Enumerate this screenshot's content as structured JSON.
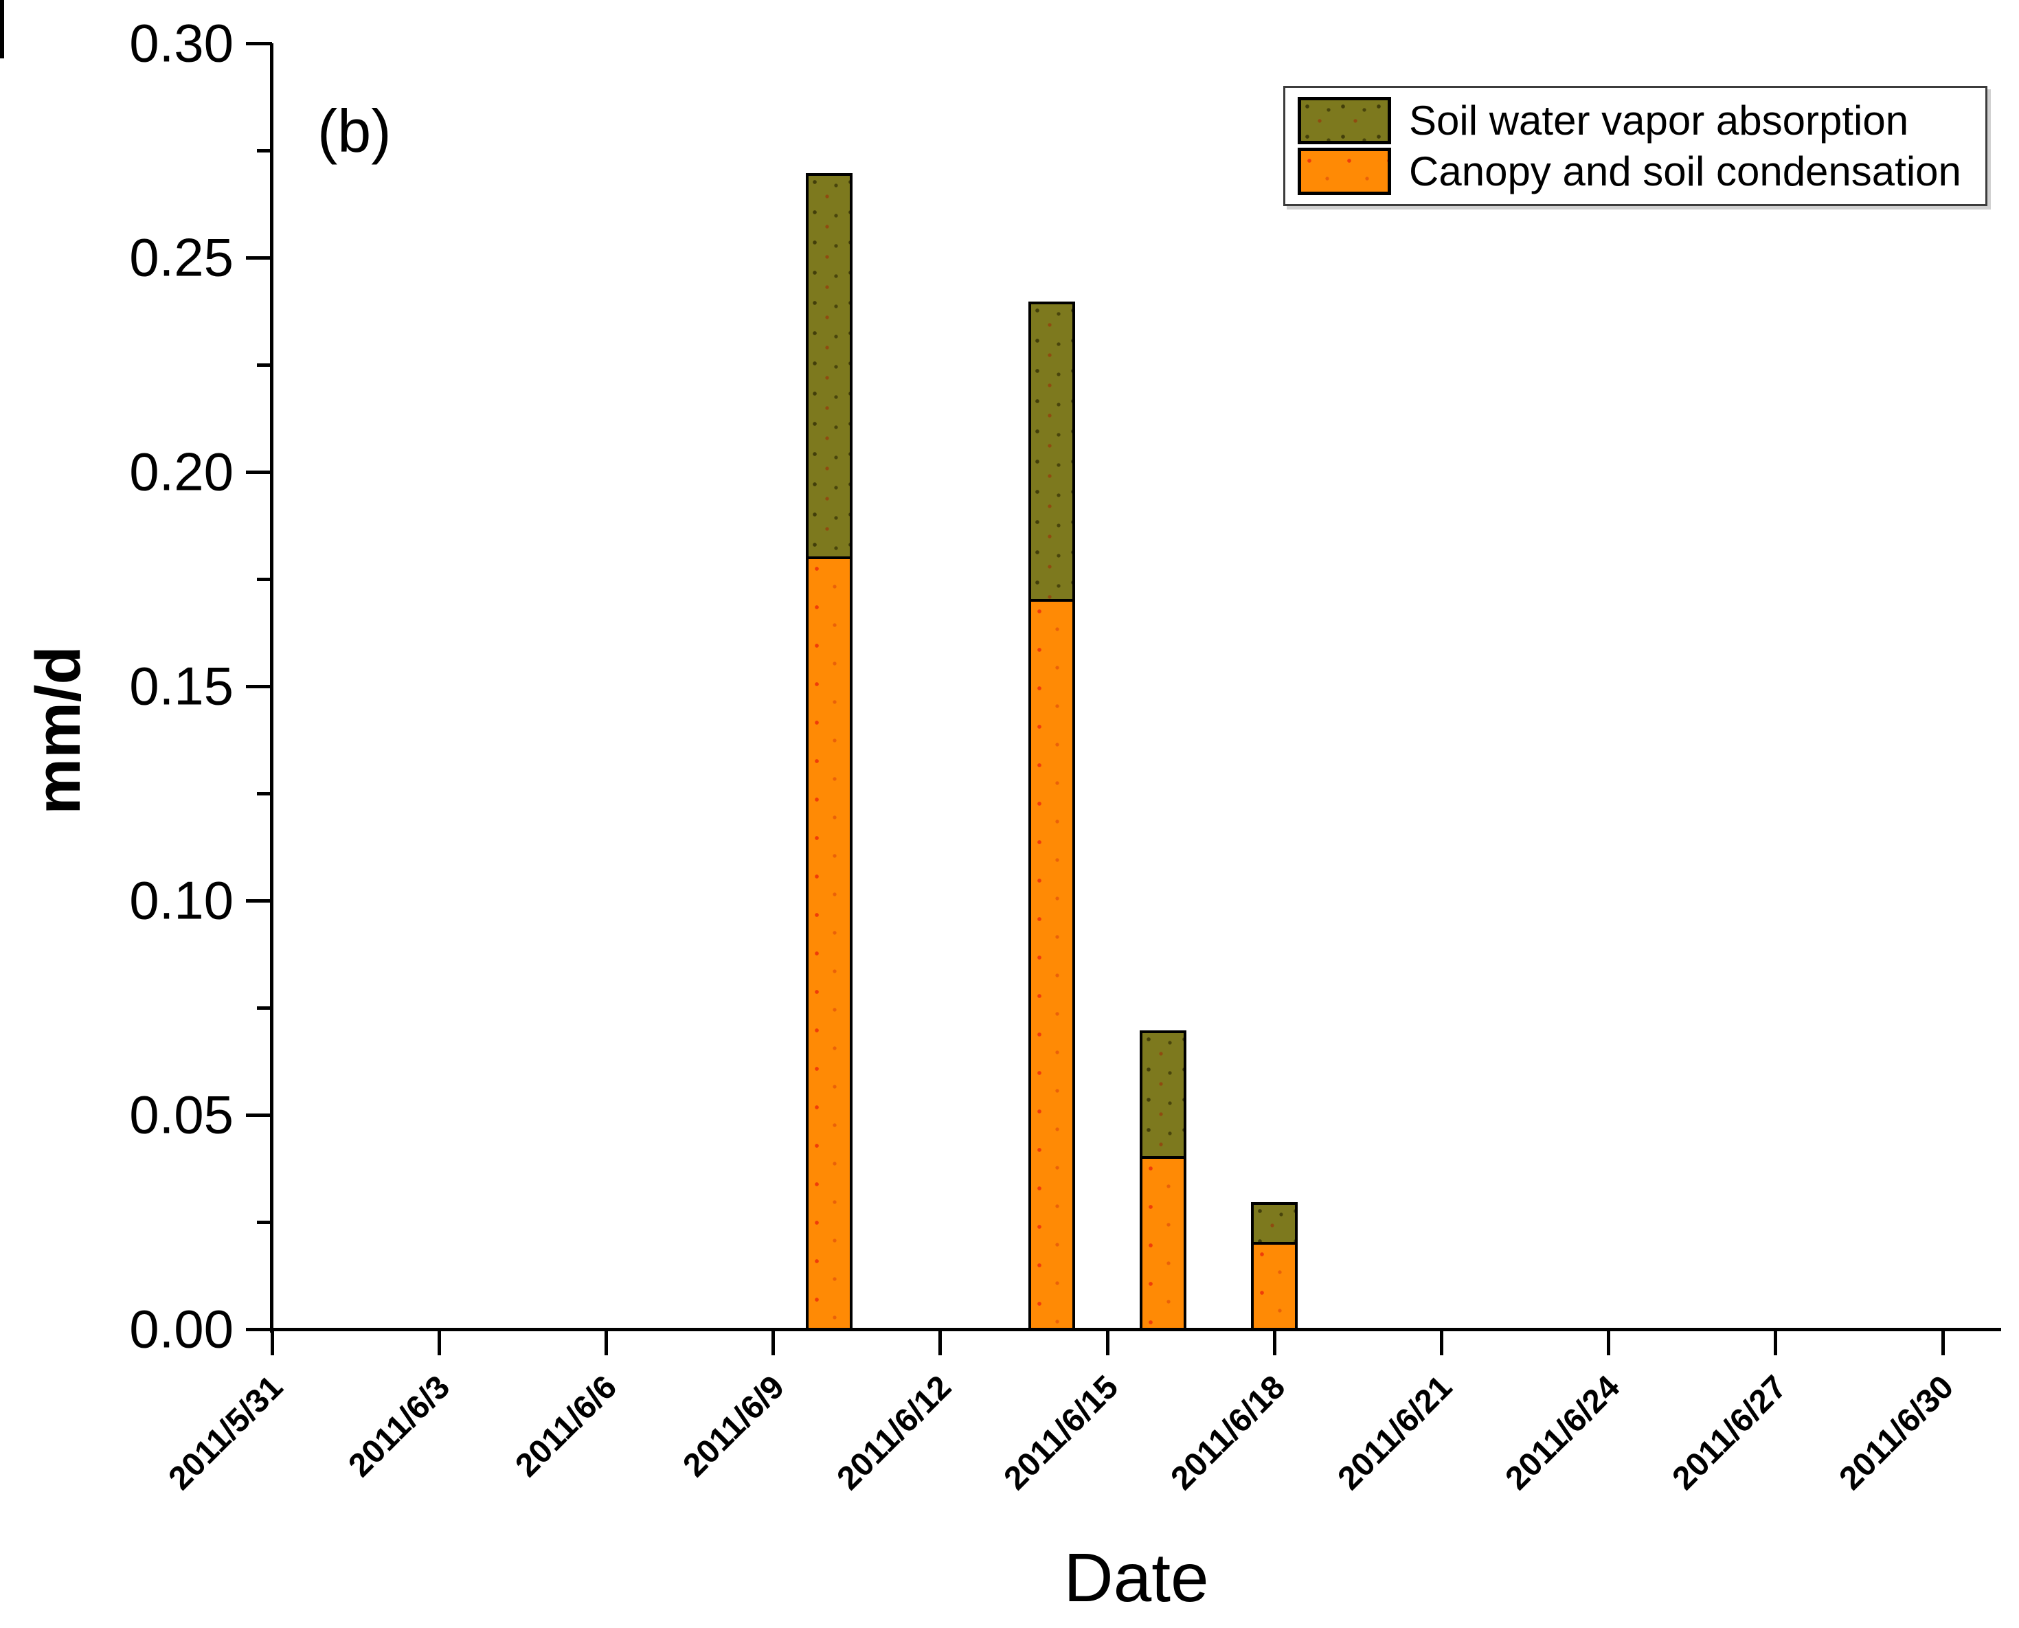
{
  "chart_data": {
    "type": "bar",
    "stacked": true,
    "panel_label": "(b)",
    "xlabel": "Date",
    "ylabel": "mm/d",
    "ylim": [
      0,
      0.3
    ],
    "y_major_step": 0.05,
    "y_minor_step": 0.025,
    "yticks": [
      "0.00",
      "0.05",
      "0.10",
      "0.15",
      "0.20",
      "0.25",
      "0.30"
    ],
    "x_axis_dates": [
      "2011/5/31",
      "2011/6/3",
      "2011/6/6",
      "2011/6/9",
      "2011/6/12",
      "2011/6/15",
      "2011/6/18",
      "2011/6/21",
      "2011/6/24",
      "2011/6/27",
      "2011/6/30"
    ],
    "x_range_dates": [
      "2011/5/31",
      "2011/6/30"
    ],
    "grid": false,
    "legend_position": "top-right",
    "bar_dates": [
      "2011/6/10",
      "2011/6/14",
      "2011/6/16",
      "2011/6/18"
    ],
    "series": [
      {
        "name": "Soil water vapor absorption",
        "color": "#7d791e",
        "values": [
          0.09,
          0.07,
          0.03,
          0.01
        ]
      },
      {
        "name": "Canopy and soil condensation",
        "color": "#ff8a05",
        "values": [
          0.18,
          0.17,
          0.04,
          0.02
        ]
      }
    ],
    "bar_totals": [
      0.27,
      0.24,
      0.07,
      0.03
    ]
  }
}
